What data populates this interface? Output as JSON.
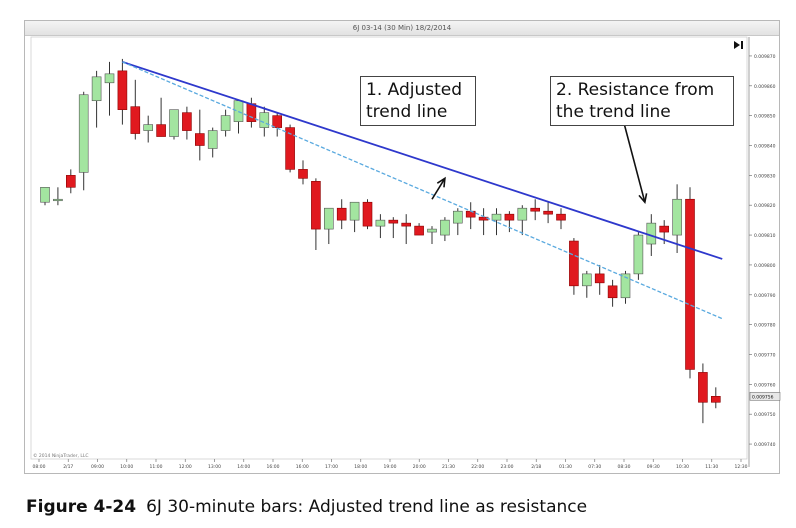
{
  "window": {
    "title": "6J 03-14 (30 Min)  18/2/2014"
  },
  "watermark": "© 2014 NinjaTrader, LLC",
  "callouts": [
    {
      "text": "1. Adjusted\ntrend line"
    },
    {
      "text": "2. Resistance from\nthe trend line"
    }
  ],
  "caption": {
    "label": "Figure 4-24",
    "text": "6J 30-minute bars: Adjusted trend line as resistance"
  },
  "price_marker": "0.009756",
  "colors": {
    "up": "#a3e5a0",
    "down": "#e0191f",
    "trend": "#2e38cc",
    "adjusted": "#59a9df",
    "wick": "#333333"
  },
  "chart_data": {
    "type": "candlestick",
    "instrument": "6J 03-14",
    "timeframe": "30 Min",
    "ylim": [
      0.009735,
      0.009875
    ],
    "y_ticks": [
      "0.009870",
      "0.009860",
      "0.009850",
      "0.009840",
      "0.009830",
      "0.009820",
      "0.009810",
      "0.009800",
      "0.009790",
      "0.009780",
      "0.009770",
      "0.009760",
      "0.009750",
      "0.009740"
    ],
    "x_ticks": [
      "08:00",
      "2/17",
      "09:00",
      "10:00",
      "11:00",
      "12:00",
      "13:00",
      "14:00",
      "16:00",
      "16:00",
      "17:00",
      "18:00",
      "19:00",
      "20:00",
      "21:30",
      "22:00",
      "23:00",
      "2/18",
      "01:30",
      "07:30",
      "08:30",
      "09:30",
      "10:30",
      "11:30",
      "12:30"
    ],
    "candles": [
      {
        "o": 0.009821,
        "h": 0.009826,
        "l": 0.00982,
        "c": 0.009826
      },
      {
        "o": 0.009822,
        "h": 0.009826,
        "l": 0.00982,
        "c": 0.009822
      },
      {
        "o": 0.00983,
        "h": 0.009832,
        "l": 0.009824,
        "c": 0.009826
      },
      {
        "o": 0.009831,
        "h": 0.009858,
        "l": 0.009825,
        "c": 0.009857
      },
      {
        "o": 0.009855,
        "h": 0.009865,
        "l": 0.009846,
        "c": 0.009863
      },
      {
        "o": 0.009861,
        "h": 0.009868,
        "l": 0.00985,
        "c": 0.009864
      },
      {
        "o": 0.009865,
        "h": 0.009869,
        "l": 0.009847,
        "c": 0.009852
      },
      {
        "o": 0.009853,
        "h": 0.009862,
        "l": 0.009842,
        "c": 0.009844
      },
      {
        "o": 0.009845,
        "h": 0.00985,
        "l": 0.009841,
        "c": 0.009847
      },
      {
        "o": 0.009847,
        "h": 0.009856,
        "l": 0.009843,
        "c": 0.009843
      },
      {
        "o": 0.009843,
        "h": 0.009852,
        "l": 0.009842,
        "c": 0.009852
      },
      {
        "o": 0.009851,
        "h": 0.009853,
        "l": 0.009842,
        "c": 0.009845
      },
      {
        "o": 0.009844,
        "h": 0.009852,
        "l": 0.009835,
        "c": 0.00984
      },
      {
        "o": 0.009839,
        "h": 0.009846,
        "l": 0.009836,
        "c": 0.009845
      },
      {
        "o": 0.009845,
        "h": 0.009852,
        "l": 0.009843,
        "c": 0.00985
      },
      {
        "o": 0.009848,
        "h": 0.009855,
        "l": 0.009844,
        "c": 0.009855
      },
      {
        "o": 0.009854,
        "h": 0.009856,
        "l": 0.009846,
        "c": 0.009848
      },
      {
        "o": 0.009846,
        "h": 0.009853,
        "l": 0.009843,
        "c": 0.009851
      },
      {
        "o": 0.00985,
        "h": 0.009851,
        "l": 0.009843,
        "c": 0.009846
      },
      {
        "o": 0.009846,
        "h": 0.009847,
        "l": 0.009831,
        "c": 0.009832
      },
      {
        "o": 0.009832,
        "h": 0.009835,
        "l": 0.009827,
        "c": 0.009829
      },
      {
        "o": 0.009828,
        "h": 0.009829,
        "l": 0.009805,
        "c": 0.009812
      },
      {
        "o": 0.009812,
        "h": 0.009819,
        "l": 0.009807,
        "c": 0.009819
      },
      {
        "o": 0.009819,
        "h": 0.009822,
        "l": 0.009812,
        "c": 0.009815
      },
      {
        "o": 0.009815,
        "h": 0.009821,
        "l": 0.009811,
        "c": 0.009821
      },
      {
        "o": 0.009821,
        "h": 0.009822,
        "l": 0.009812,
        "c": 0.009813
      },
      {
        "o": 0.009813,
        "h": 0.009817,
        "l": 0.009809,
        "c": 0.009815
      },
      {
        "o": 0.009815,
        "h": 0.009816,
        "l": 0.009809,
        "c": 0.009814
      },
      {
        "o": 0.009814,
        "h": 0.009817,
        "l": 0.009807,
        "c": 0.009813
      },
      {
        "o": 0.009813,
        "h": 0.009814,
        "l": 0.00981,
        "c": 0.00981
      },
      {
        "o": 0.009811,
        "h": 0.009813,
        "l": 0.009807,
        "c": 0.009812
      },
      {
        "o": 0.00981,
        "h": 0.009816,
        "l": 0.009808,
        "c": 0.009815
      },
      {
        "o": 0.009814,
        "h": 0.009819,
        "l": 0.00981,
        "c": 0.009818
      },
      {
        "o": 0.009818,
        "h": 0.009821,
        "l": 0.009812,
        "c": 0.009816
      },
      {
        "o": 0.009816,
        "h": 0.009819,
        "l": 0.00981,
        "c": 0.009815
      },
      {
        "o": 0.009815,
        "h": 0.009819,
        "l": 0.00981,
        "c": 0.009817
      },
      {
        "o": 0.009817,
        "h": 0.009818,
        "l": 0.009811,
        "c": 0.009815
      },
      {
        "o": 0.009815,
        "h": 0.00982,
        "l": 0.00981,
        "c": 0.009819
      },
      {
        "o": 0.009819,
        "h": 0.009822,
        "l": 0.009815,
        "c": 0.009818
      },
      {
        "o": 0.009818,
        "h": 0.009821,
        "l": 0.009814,
        "c": 0.009817
      },
      {
        "o": 0.009817,
        "h": 0.009819,
        "l": 0.009812,
        "c": 0.009815
      },
      {
        "o": 0.009808,
        "h": 0.009809,
        "l": 0.00979,
        "c": 0.009793
      },
      {
        "o": 0.009793,
        "h": 0.009798,
        "l": 0.009789,
        "c": 0.009797
      },
      {
        "o": 0.009797,
        "h": 0.0098,
        "l": 0.00979,
        "c": 0.009794
      },
      {
        "o": 0.009793,
        "h": 0.009795,
        "l": 0.009786,
        "c": 0.009789
      },
      {
        "o": 0.009789,
        "h": 0.009798,
        "l": 0.009787,
        "c": 0.009797
      },
      {
        "o": 0.009797,
        "h": 0.009811,
        "l": 0.009795,
        "c": 0.00981
      },
      {
        "o": 0.009807,
        "h": 0.009817,
        "l": 0.009803,
        "c": 0.009814
      },
      {
        "o": 0.009813,
        "h": 0.009815,
        "l": 0.009807,
        "c": 0.009811
      },
      {
        "o": 0.00981,
        "h": 0.009827,
        "l": 0.009804,
        "c": 0.009822
      },
      {
        "o": 0.009822,
        "h": 0.009826,
        "l": 0.009762,
        "c": 0.009765
      },
      {
        "o": 0.009764,
        "h": 0.009767,
        "l": 0.009747,
        "c": 0.009754
      },
      {
        "o": 0.009756,
        "h": 0.009759,
        "l": 0.009752,
        "c": 0.009754
      }
    ],
    "lines": [
      {
        "name": "trend line",
        "style": "solid",
        "from": {
          "bar": 6,
          "price": 0.009868
        },
        "to": {
          "bar": 52.5,
          "price": 0.009802
        }
      },
      {
        "name": "adjusted trend line",
        "style": "dashed",
        "from": {
          "bar": 6,
          "price": 0.009868
        },
        "to": {
          "bar": 52.5,
          "price": 0.009782
        }
      }
    ],
    "arrows": [
      {
        "from": {
          "bar": 30,
          "price": 0.009822
        },
        "to": {
          "bar": 31,
          "price": 0.009829
        }
      },
      {
        "from": {
          "bar": 44,
          "price": 0.009862
        },
        "to": {
          "bar": 46.5,
          "price": 0.009821
        }
      }
    ]
  }
}
